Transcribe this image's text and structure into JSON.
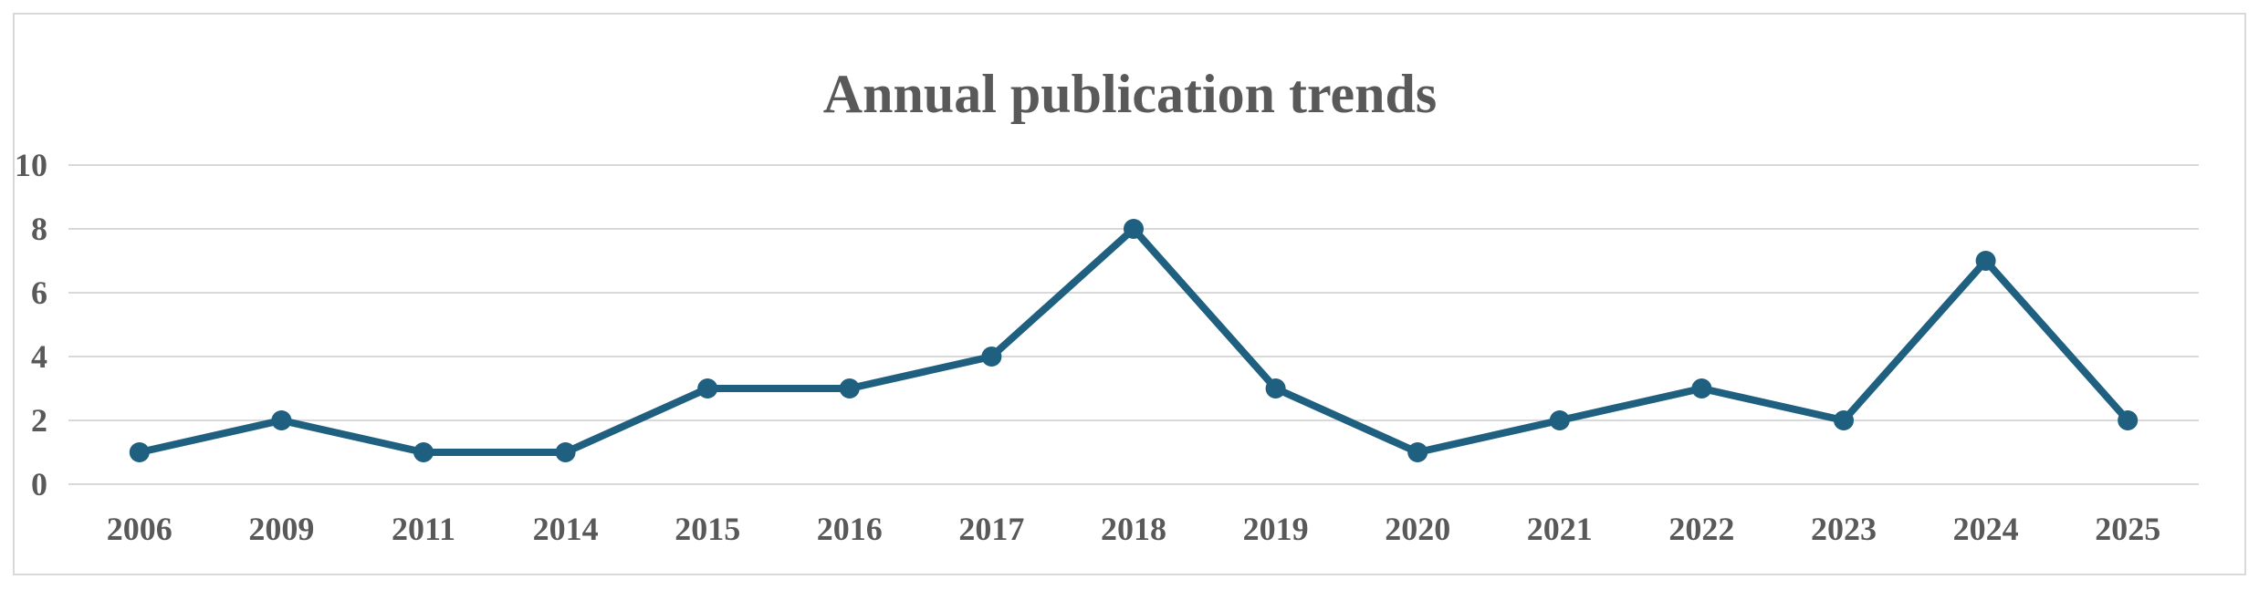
{
  "chart_data": {
    "type": "line",
    "title": "Annual publication trends",
    "xlabel": "",
    "ylabel": "",
    "categories": [
      "2006",
      "2009",
      "2011",
      "2014",
      "2015",
      "2016",
      "2017",
      "2018",
      "2019",
      "2020",
      "2021",
      "2022",
      "2023",
      "2024",
      "2025"
    ],
    "series": [
      {
        "values": [
          1,
          2,
          1,
          1,
          3,
          3,
          4,
          8,
          3,
          1,
          2,
          3,
          2,
          7,
          2
        ],
        "color": "#1f5f80",
        "marker": "circle"
      }
    ],
    "ylim": [
      0,
      10
    ],
    "yticks": [
      0,
      2,
      4,
      6,
      8,
      10
    ],
    "grid": true,
    "legend": "none",
    "gridline_color": "#d9d9d9",
    "text_color": "#595959"
  }
}
